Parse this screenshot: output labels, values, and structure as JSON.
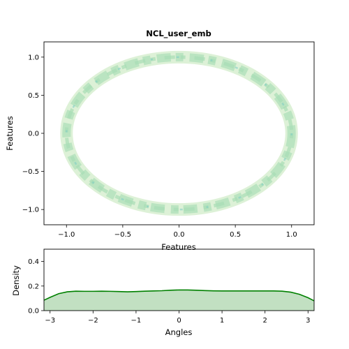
{
  "chart_data": [
    {
      "type": "scatter",
      "title": "NCL_user_emb",
      "xlabel": "Features",
      "ylabel": "Features",
      "xlim": [
        -1.2,
        1.2
      ],
      "ylim": [
        -1.2,
        1.2
      ],
      "xticks": [
        -1.0,
        -0.5,
        0.0,
        0.5,
        1.0
      ],
      "xtick_labels": [
        "−1.0",
        "−0.5",
        "0.0",
        "0.5",
        "1.0"
      ],
      "yticks": [
        -1.0,
        -0.5,
        0.0,
        0.5,
        1.0
      ],
      "ytick_labels": [
        "−1.0",
        "−0.5",
        "0.0",
        "0.5",
        "1.0"
      ],
      "grid": false,
      "shape": "unit circle density (kde contours)",
      "radius": 1.0,
      "colors": {
        "ring_light": "#d9f0d3",
        "ring_mid": "#a8ddb5",
        "ring_dark": "#7bccc4"
      }
    },
    {
      "type": "area",
      "title": "",
      "xlabel": "Angles",
      "ylabel": "Density",
      "xlim": [
        -3.14159,
        3.14159
      ],
      "ylim": [
        0,
        0.5
      ],
      "xticks": [
        -3,
        -2,
        -1,
        0,
        1,
        2,
        3
      ],
      "xtick_labels": [
        "−3",
        "−2",
        "−1",
        "0",
        "1",
        "2",
        "3"
      ],
      "yticks": [
        0.0,
        0.2,
        0.4
      ],
      "ytick_labels": [
        "0.0",
        "0.2",
        "0.4"
      ],
      "grid": false,
      "x": [
        -3.14,
        -3.0,
        -2.8,
        -2.6,
        -2.4,
        -2.2,
        -2.0,
        -1.8,
        -1.6,
        -1.4,
        -1.2,
        -1.0,
        -0.8,
        -0.6,
        -0.4,
        -0.2,
        0.0,
        0.2,
        0.4,
        0.6,
        0.8,
        1.0,
        1.2,
        1.4,
        1.6,
        1.8,
        2.0,
        2.2,
        2.4,
        2.6,
        2.8,
        3.0,
        3.14
      ],
      "y": [
        0.085,
        0.108,
        0.138,
        0.153,
        0.158,
        0.157,
        0.157,
        0.158,
        0.157,
        0.155,
        0.153,
        0.155,
        0.158,
        0.16,
        0.162,
        0.166,
        0.168,
        0.168,
        0.166,
        0.163,
        0.161,
        0.16,
        0.16,
        0.16,
        0.16,
        0.16,
        0.16,
        0.16,
        0.158,
        0.15,
        0.133,
        0.105,
        0.08
      ],
      "colors": {
        "line": "#008000",
        "fill": "#c2e0c2"
      }
    }
  ]
}
